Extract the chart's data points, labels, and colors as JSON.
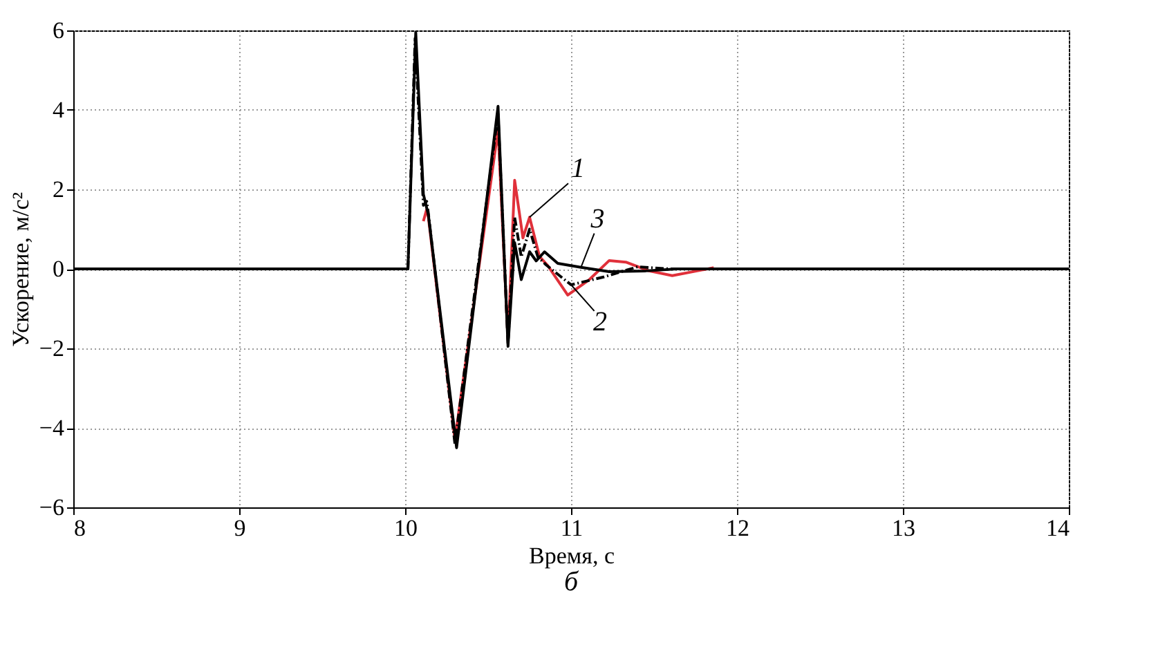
{
  "chart_data": {
    "type": "line",
    "xlabel": "Время, с",
    "ylabel": "Ускорение, м/с²",
    "xlim": [
      8,
      14
    ],
    "ylim": [
      -6,
      6
    ],
    "xticks": [
      8,
      9,
      10,
      11,
      12,
      13,
      14
    ],
    "yticks": [
      -6,
      -4,
      -2,
      0,
      2,
      4,
      6
    ],
    "grid": true,
    "series": [
      {
        "color": "#e0303a",
        "line_style": "solid",
        "x": [
          10.11,
          10.13,
          10.14,
          10.3,
          10.56,
          10.62,
          10.66,
          10.71,
          10.75,
          10.81,
          10.86,
          10.98,
          11.11,
          11.23,
          11.33,
          11.47,
          11.61,
          11.76,
          11.86
        ],
        "values": [
          1.2,
          1.5,
          1.3,
          -4.3,
          3.5,
          -1.8,
          2.23,
          0.78,
          1.3,
          0.31,
          0.08,
          -0.66,
          -0.27,
          0.21,
          0.17,
          -0.05,
          -0.17,
          -0.05,
          0.03
        ]
      },
      {
        "color": "#000000",
        "line_style": "dashed",
        "x": [
          8,
          10.0,
          10.017,
          10.06,
          10.11,
          10.13,
          10.14,
          10.3,
          10.56,
          10.62,
          10.66,
          10.7,
          10.75,
          10.8,
          10.85,
          11.0,
          11.2,
          11.4,
          11.6,
          14
        ],
        "values": [
          0,
          0,
          0,
          5.8,
          1.6,
          1.7,
          1.4,
          -4.4,
          3.9,
          -1.9,
          1.3,
          0.3,
          1.0,
          0.3,
          0.1,
          -0.4,
          -0.2,
          0.05,
          0,
          0
        ]
      },
      {
        "color": "#000000",
        "line_style": "solid",
        "x": [
          8,
          10.0,
          10.017,
          10.064,
          10.11,
          10.14,
          10.31,
          10.56,
          10.62,
          10.66,
          10.7,
          10.75,
          10.79,
          10.84,
          10.92,
          11.06,
          11.23,
          11.45,
          11.64,
          14
        ],
        "values": [
          0,
          0,
          0,
          5.95,
          1.88,
          1.36,
          -4.5,
          4.09,
          -1.95,
          0.66,
          -0.27,
          0.43,
          0.2,
          0.43,
          0.14,
          0.04,
          -0.07,
          -0.05,
          0,
          0
        ]
      }
    ],
    "annotations": [
      {
        "text": "1",
        "x": 10.75,
        "y": 1.3
      },
      {
        "text": "3",
        "x": 11.06,
        "y": 0.04
      },
      {
        "text": "2",
        "x": 11.0,
        "y": -0.4
      },
      "б"
    ]
  }
}
